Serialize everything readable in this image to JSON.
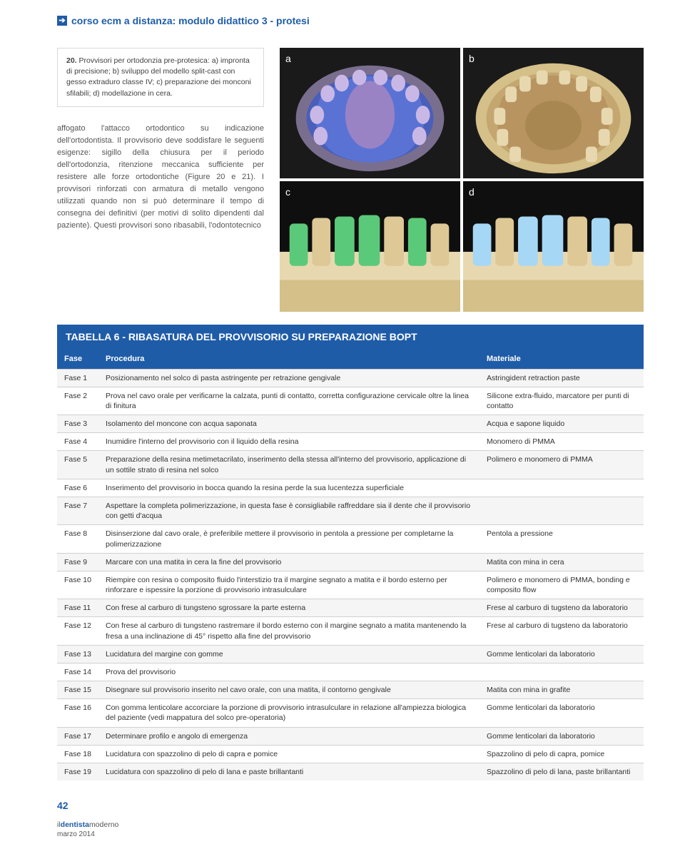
{
  "header": {
    "section_title": "corso ecm a distanza: modulo didattico 3 - protesi"
  },
  "caption": {
    "number": "20.",
    "text": "Provvisori per ortodonzia pre-protesica: a) impronta di precisione; b) sviluppo del modello split-cast con gesso extraduro classe IV; c) preparazione dei monconi sfilabili; d) modellazione in cera."
  },
  "body_text": "affogato l'attacco ortodontico su indicazione dell'ortodontista. Il provvisorio deve soddisfare le seguenti esigenze: sigillo della chiusura per il periodo dell'ortodonzia, ritenzione meccanica sufficiente per resistere alle forze ortodontiche (Figure 20 e 21). I provvisori rinforzati con armatura di metallo vengono utilizzati quando non si può determinare il tempo di consegna dei definitivi (per motivi di solito dipendenti dal paziente). Questi provvisori sono ribasabili, l'odontotecnico",
  "figures": {
    "labels": [
      "a",
      "b",
      "c",
      "d"
    ]
  },
  "table": {
    "title": "TABELLA 6 - RIBASATURA DEL PROVVISORIO SU PREPARAZIONE BOPT",
    "headers": [
      "Fase",
      "Procedura",
      "Materiale"
    ],
    "rows": [
      [
        "Fase 1",
        "Posizionamento nel solco di pasta astringente per retrazione gengivale",
        "Astringident retraction paste"
      ],
      [
        "Fase 2",
        "Prova nel cavo orale per verificarne la calzata, punti di contatto, corretta configurazione cervicale oltre la linea di finitura",
        "Silicone extra-fluido, marcatore per punti di contatto"
      ],
      [
        "Fase 3",
        "Isolamento del moncone con acqua saponata",
        "Acqua e sapone liquido"
      ],
      [
        "Fase 4",
        "Inumidire l'interno del provvisorio con il liquido della resina",
        "Monomero di PMMA"
      ],
      [
        "Fase 5",
        "Preparazione della resina metimetacrilato, inserimento della stessa all'interno del provvisorio, applicazione di un sottile strato di resina nel solco",
        "Polimero e monomero di PMMA"
      ],
      [
        "Fase 6",
        "Inserimento del provvisorio in bocca quando la resina perde la sua lucentezza superficiale",
        ""
      ],
      [
        "Fase 7",
        "Aspettare la completa polimerizzazione, in questa fase è consigliabile raffreddare sia il dente che il provvisorio con getti d'acqua",
        ""
      ],
      [
        "Fase 8",
        "Disinserzione dal cavo orale, è preferibile mettere il provvisorio in pentola a pressione per completarne la polimerizzazione",
        "Pentola a pressione"
      ],
      [
        "Fase 9",
        "Marcare con una matita in cera la fine del provvisorio",
        "Matita con mina in cera"
      ],
      [
        "Fase 10",
        "Riempire con resina o composito fluido l'interstizio tra il margine segnato a matita e il bordo esterno per rinforzare e ispessire la porzione di provvisorio intrasulculare",
        "Polimero e monomero di PMMA, bonding e composito flow"
      ],
      [
        "Fase 11",
        "Con frese al carburo di tungsteno sgrossare la parte esterna",
        "Frese al carburo di tugsteno da laboratorio"
      ],
      [
        "Fase 12",
        "Con frese al carburo di tungsteno rastremare il bordo esterno con il margine segnato a matita mantenendo la fresa a una inclinazione di 45° rispetto alla fine del provvisorio",
        "Frese al carburo di tugsteno da laboratorio"
      ],
      [
        "Fase 13",
        "Lucidatura del margine con gomme",
        "Gomme lenticolari da laboratorio"
      ],
      [
        "Fase 14",
        "Prova del provvisorio",
        ""
      ],
      [
        "Fase 15",
        "Disegnare sul provvisorio inserito nel cavo orale, con una matita, il contorno gengivale",
        "Matita con mina in grafite"
      ],
      [
        "Fase 16",
        "Con gomma lenticolare accorciare la porzione di provvisorio intrasulculare in relazione all'ampiezza biologica del paziente (vedi mappatura del solco pre-operatoria)",
        "Gomme lenticolari da laboratorio"
      ],
      [
        "Fase 17",
        "Determinare profilo e angolo di emergenza",
        "Gomme lenticolari da laboratorio"
      ],
      [
        "Fase 18",
        "Lucidatura con spazzolino di pelo di capra e pomice",
        "Spazzolino di pelo di capra, pomice"
      ],
      [
        "Fase 19",
        "Lucidatura con spazzolino di pelo di lana e paste brillantanti",
        "Spazzolino di pelo di lana, paste brillantanti"
      ]
    ]
  },
  "footer": {
    "page_number": "42",
    "brand1": "il",
    "brand2": "dentista",
    "brand3": "moderno",
    "issue": "marzo 2014"
  },
  "colors": {
    "accent": "#1f5ca8",
    "row_alt": "#f5f5f5",
    "border": "#d0d0d0",
    "text": "#333333",
    "muted": "#555555"
  }
}
